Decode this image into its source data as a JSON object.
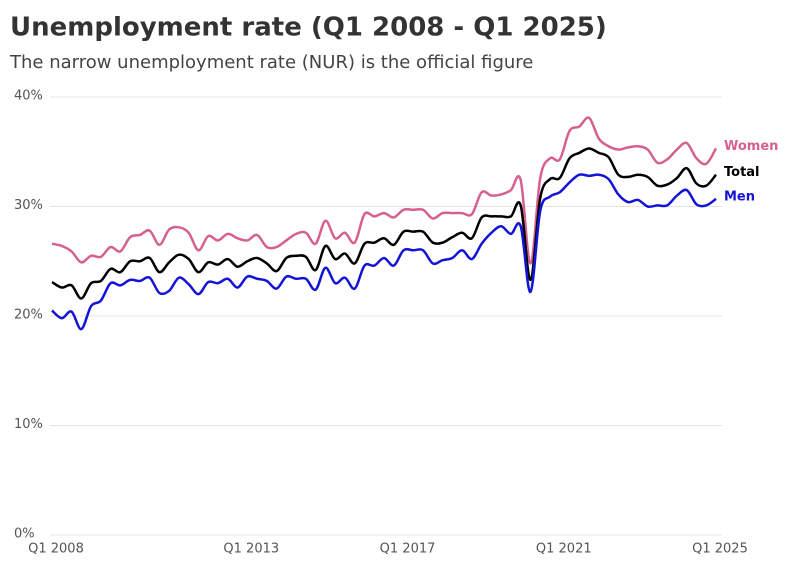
{
  "chart_data": {
    "type": "line",
    "title": "Unemployment rate (Q1 2008 - Q1 2025)",
    "subtitle": "The narrow unemployment rate (NUR) is the official figure",
    "categories": [
      "Q1 2008",
      null,
      null,
      null,
      null,
      null,
      null,
      null,
      null,
      null,
      null,
      null,
      null,
      null,
      null,
      null,
      null,
      null,
      null,
      null,
      "Q1 2013",
      null,
      null,
      null,
      null,
      null,
      null,
      null,
      null,
      null,
      null,
      null,
      null,
      null,
      null,
      null,
      "Q1 2017",
      null,
      null,
      null,
      null,
      null,
      null,
      null,
      null,
      null,
      null,
      null,
      null,
      null,
      null,
      null,
      "Q1 2021",
      null,
      null,
      null,
      null,
      null,
      null,
      null,
      null,
      null,
      null,
      null,
      null,
      null,
      null,
      null,
      "Q1 2025"
    ],
    "series": [
      {
        "name": "Women",
        "color": "#d6608f",
        "values": [
          26.6,
          26.4,
          25.9,
          24.9,
          25.5,
          25.4,
          26.3,
          25.9,
          27.2,
          27.4,
          27.8,
          26.5,
          27.9,
          28.1,
          27.6,
          26.0,
          27.3,
          26.9,
          27.5,
          27.1,
          26.9,
          27.4,
          26.3,
          26.3,
          26.9,
          27.5,
          27.6,
          26.6,
          28.7,
          27.1,
          27.6,
          26.7,
          29.3,
          29.1,
          29.4,
          29.0,
          29.7,
          29.7,
          29.7,
          28.9,
          29.4,
          29.4,
          29.4,
          29.3,
          31.3,
          31.0,
          31.1,
          31.5,
          32.4,
          24.8,
          32.6,
          34.4,
          34.3,
          36.9,
          37.3,
          38.1,
          36.2,
          35.5,
          35.2,
          35.4,
          35.5,
          35.2,
          34.0,
          34.3,
          35.2,
          35.8,
          34.4,
          33.9,
          35.3
        ]
      },
      {
        "name": "Total",
        "color": "#000000",
        "values": [
          23.1,
          22.6,
          22.8,
          21.6,
          23.0,
          23.2,
          24.3,
          24.0,
          25.0,
          25.0,
          25.3,
          24.0,
          24.9,
          25.6,
          25.2,
          24.0,
          24.9,
          24.7,
          25.2,
          24.5,
          25.0,
          25.3,
          24.8,
          24.1,
          25.3,
          25.5,
          25.4,
          24.2,
          26.4,
          25.2,
          25.7,
          24.8,
          26.6,
          26.7,
          27.1,
          26.5,
          27.7,
          27.7,
          27.7,
          26.7,
          26.7,
          27.2,
          27.6,
          27.1,
          29.0,
          29.1,
          29.1,
          29.1,
          30.1,
          23.3,
          30.8,
          32.5,
          32.6,
          34.4,
          34.9,
          35.3,
          34.9,
          34.5,
          32.9,
          32.7,
          32.9,
          32.7,
          31.9,
          32.0,
          32.6,
          33.5,
          32.1,
          31.9,
          32.9
        ]
      },
      {
        "name": "Men",
        "color": "#1414d6",
        "values": [
          20.5,
          19.8,
          20.4,
          18.8,
          20.9,
          21.4,
          23.0,
          22.8,
          23.3,
          23.2,
          23.5,
          22.1,
          22.3,
          23.5,
          22.9,
          22.0,
          23.1,
          23.0,
          23.4,
          22.6,
          23.6,
          23.4,
          23.2,
          22.5,
          23.6,
          23.4,
          23.4,
          22.4,
          24.4,
          23.0,
          23.5,
          22.5,
          24.6,
          24.6,
          25.3,
          24.6,
          26.0,
          26.0,
          26.0,
          24.8,
          25.1,
          25.3,
          26.0,
          25.2,
          26.6,
          27.6,
          28.2,
          27.5,
          28.2,
          22.2,
          29.6,
          30.9,
          31.3,
          32.2,
          32.9,
          32.8,
          32.9,
          32.5,
          31.1,
          30.4,
          30.6,
          30.0,
          30.1,
          30.1,
          31.0,
          31.5,
          30.2,
          30.1,
          30.7
        ]
      }
    ],
    "ylim": [
      0,
      40
    ],
    "yticks": [
      {
        "value": 0,
        "label": "0%"
      },
      {
        "value": 10,
        "label": "10%"
      },
      {
        "value": 20,
        "label": "20%"
      },
      {
        "value": 30,
        "label": "30%"
      },
      {
        "value": 40,
        "label": "40%"
      }
    ],
    "grid": true
  }
}
